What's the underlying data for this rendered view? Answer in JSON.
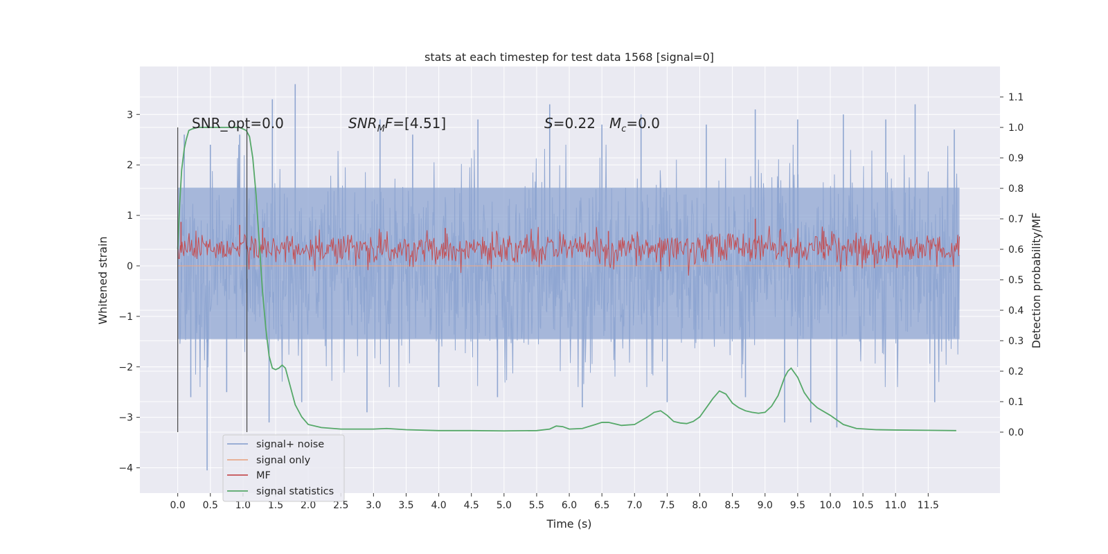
{
  "chart_data": {
    "type": "line",
    "title": "stats at each timestep for test data 1568 [signal=0]",
    "xlabel": "Time (s)",
    "ylabel_left": "Whitened strain",
    "ylabel_right": "Detection probability/MF",
    "xlim": [
      -0.58,
      12.6
    ],
    "ylim_left": [
      -4.5,
      3.95
    ],
    "ylim_right": [
      -0.2,
      1.2
    ],
    "x_ticks": [
      "0.0",
      "0.5",
      "1.0",
      "1.5",
      "2.0",
      "2.5",
      "3.0",
      "3.5",
      "4.0",
      "4.5",
      "5.0",
      "5.5",
      "6.0",
      "6.5",
      "7.0",
      "7.5",
      "8.0",
      "8.5",
      "9.0",
      "9.5",
      "10.0",
      "10.5",
      "11.0",
      "11.5"
    ],
    "y_ticks_left": [
      "3",
      "2",
      "1",
      "0",
      "−1",
      "−2",
      "−3",
      "−4"
    ],
    "y_ticks_right": [
      "1.1",
      "1.0",
      "0.9",
      "0.8",
      "0.7",
      "0.6",
      "0.5",
      "0.4",
      "0.3",
      "0.2",
      "0.1",
      "0.0"
    ],
    "grid": true,
    "legend_position": "lower-left",
    "vertical_markers": [
      0.0,
      1.06
    ],
    "annotations": {
      "snr_opt": {
        "prefix": "SNR_opt=",
        "value": "0.0"
      },
      "snr_mf": {
        "label_main": "SNR",
        "label_sub": "M",
        "label_after": "F",
        "value": "=[4.51]"
      },
      "s_stat": {
        "label": "S",
        "value": "=0.22"
      },
      "mc": {
        "label": "M",
        "sub": "c",
        "value": "=0.0"
      }
    },
    "series": [
      {
        "name": "signal+ noise",
        "axis": "left",
        "color": "#8fa6d1",
        "x_range": [
          0.0,
          11.98
        ],
        "core_band": [
          -1.45,
          1.55
        ],
        "positive_peaks": [
          [
            0.1,
            2.6
          ],
          [
            0.5,
            2.4
          ],
          [
            0.95,
            2.6
          ],
          [
            1.45,
            3.3
          ],
          [
            1.8,
            3.6
          ],
          [
            3.1,
            2.9
          ],
          [
            3.6,
            2.6
          ],
          [
            4.6,
            2.9
          ],
          [
            5.7,
            3.2
          ],
          [
            6.5,
            2.8
          ],
          [
            7.1,
            3.0
          ],
          [
            8.1,
            2.8
          ],
          [
            8.85,
            3.1
          ],
          [
            9.5,
            2.9
          ],
          [
            10.2,
            3.0
          ],
          [
            10.85,
            2.9
          ],
          [
            11.3,
            3.2
          ],
          [
            11.9,
            2.7
          ]
        ],
        "negative_peaks": [
          [
            0.2,
            -2.6
          ],
          [
            0.45,
            -4.05
          ],
          [
            0.75,
            -2.5
          ],
          [
            1.4,
            -3.1
          ],
          [
            1.9,
            -2.7
          ],
          [
            2.9,
            -2.9
          ],
          [
            4.0,
            -2.4
          ],
          [
            4.9,
            -2.6
          ],
          [
            6.2,
            -2.8
          ],
          [
            7.5,
            -2.7
          ],
          [
            8.7,
            -2.6
          ],
          [
            9.3,
            -3.1
          ],
          [
            9.7,
            -3.1
          ],
          [
            10.1,
            -3.2
          ],
          [
            11.6,
            -2.7
          ]
        ]
      },
      {
        "name": "signal only",
        "axis": "left",
        "color": "#e8a98a",
        "constant": 0.0
      },
      {
        "name": "MF",
        "axis": "right",
        "color": "#c44e52",
        "baseline": 0.6,
        "amplitude": 0.04,
        "spikes": [
          [
            0.05,
            0.69
          ],
          [
            0.95,
            0.68
          ],
          [
            1.3,
            0.67
          ],
          [
            4.1,
            0.67
          ],
          [
            6.6,
            0.66
          ],
          [
            8.85,
            0.7
          ],
          [
            9.9,
            0.66
          ]
        ]
      },
      {
        "name": "signal statistics",
        "axis": "right",
        "color": "#55a868",
        "x": [
          0.0,
          0.03,
          0.06,
          0.1,
          0.13,
          0.17,
          0.22,
          0.3,
          0.4,
          0.55,
          0.7,
          0.85,
          0.95,
          1.0,
          1.05,
          1.1,
          1.15,
          1.2,
          1.25,
          1.3,
          1.35,
          1.4,
          1.45,
          1.5,
          1.55,
          1.6,
          1.65,
          1.7,
          1.8,
          1.9,
          2.0,
          2.2,
          2.5,
          3.0,
          3.2,
          3.5,
          4.0,
          4.5,
          5.0,
          5.5,
          5.7,
          5.8,
          5.9,
          6.0,
          6.2,
          6.4,
          6.5,
          6.6,
          6.8,
          7.0,
          7.2,
          7.3,
          7.4,
          7.5,
          7.6,
          7.7,
          7.8,
          7.9,
          8.0,
          8.1,
          8.2,
          8.3,
          8.4,
          8.5,
          8.6,
          8.7,
          8.8,
          8.9,
          9.0,
          9.1,
          9.2,
          9.3,
          9.35,
          9.4,
          9.5,
          9.6,
          9.7,
          9.8,
          10.0,
          10.2,
          10.4,
          10.7,
          11.0,
          11.5,
          11.93
        ],
        "y": [
          0.6,
          0.75,
          0.86,
          0.93,
          0.96,
          0.99,
          0.995,
          1.0,
          1.0,
          1.0,
          1.0,
          1.0,
          1.0,
          0.995,
          0.99,
          0.97,
          0.9,
          0.78,
          0.62,
          0.46,
          0.34,
          0.25,
          0.21,
          0.205,
          0.21,
          0.22,
          0.21,
          0.17,
          0.09,
          0.05,
          0.025,
          0.015,
          0.01,
          0.01,
          0.012,
          0.008,
          0.005,
          0.005,
          0.004,
          0.005,
          0.01,
          0.02,
          0.018,
          0.01,
          0.012,
          0.025,
          0.032,
          0.032,
          0.022,
          0.025,
          0.05,
          0.065,
          0.07,
          0.055,
          0.035,
          0.03,
          0.028,
          0.035,
          0.05,
          0.08,
          0.11,
          0.135,
          0.125,
          0.095,
          0.08,
          0.07,
          0.065,
          0.062,
          0.065,
          0.085,
          0.12,
          0.18,
          0.2,
          0.21,
          0.18,
          0.13,
          0.1,
          0.08,
          0.055,
          0.025,
          0.012,
          0.008,
          0.007,
          0.006,
          0.005
        ]
      }
    ]
  }
}
